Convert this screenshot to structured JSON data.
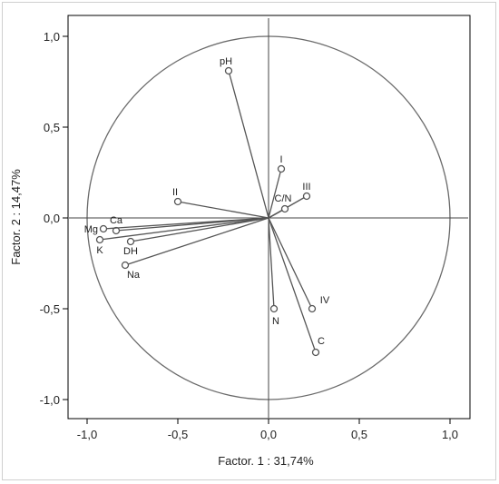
{
  "chart_data": {
    "type": "scatter",
    "subtype": "pca-correlation-circle",
    "title": "",
    "xlabel": "Factor. 1 : 31,74%",
    "ylabel": "Factor. 2 : 14,47%",
    "xlim": [
      -1.1,
      1.1
    ],
    "ylim": [
      -1.1,
      1.1
    ],
    "x_ticks": [
      -1.0,
      -0.5,
      0.0,
      0.5,
      1.0
    ],
    "x_tick_labels": [
      "-1,0",
      "-0,5",
      "0,0",
      "0,5",
      "1,0"
    ],
    "y_ticks": [
      1.0,
      0.5,
      0.0,
      -0.5,
      -1.0
    ],
    "y_tick_labels": [
      "1,0",
      "0,5",
      "0,0",
      "-0,5",
      "-1,0"
    ],
    "grid": false,
    "legend": "none",
    "unit_circle": true,
    "colors": {
      "line": "#555555",
      "marker": "#555555",
      "axis": "#000000",
      "text": "#222222"
    },
    "points": [
      {
        "label": "pH",
        "x": -0.22,
        "y": 0.81
      },
      {
        "label": "I",
        "x": 0.07,
        "y": 0.27
      },
      {
        "label": "III",
        "x": 0.21,
        "y": 0.12
      },
      {
        "label": "C/N",
        "x": 0.09,
        "y": 0.05
      },
      {
        "label": "II",
        "x": -0.5,
        "y": 0.09
      },
      {
        "label": "Ca",
        "x": -0.84,
        "y": -0.07
      },
      {
        "label": "Mg",
        "x": -0.91,
        "y": -0.06
      },
      {
        "label": "K",
        "x": -0.93,
        "y": -0.12
      },
      {
        "label": "DH",
        "x": -0.76,
        "y": -0.13
      },
      {
        "label": "Na",
        "x": -0.79,
        "y": -0.26
      },
      {
        "label": "IV",
        "x": 0.24,
        "y": -0.5
      },
      {
        "label": "N",
        "x": 0.03,
        "y": -0.5
      },
      {
        "label": "C",
        "x": 0.26,
        "y": -0.74
      }
    ]
  }
}
